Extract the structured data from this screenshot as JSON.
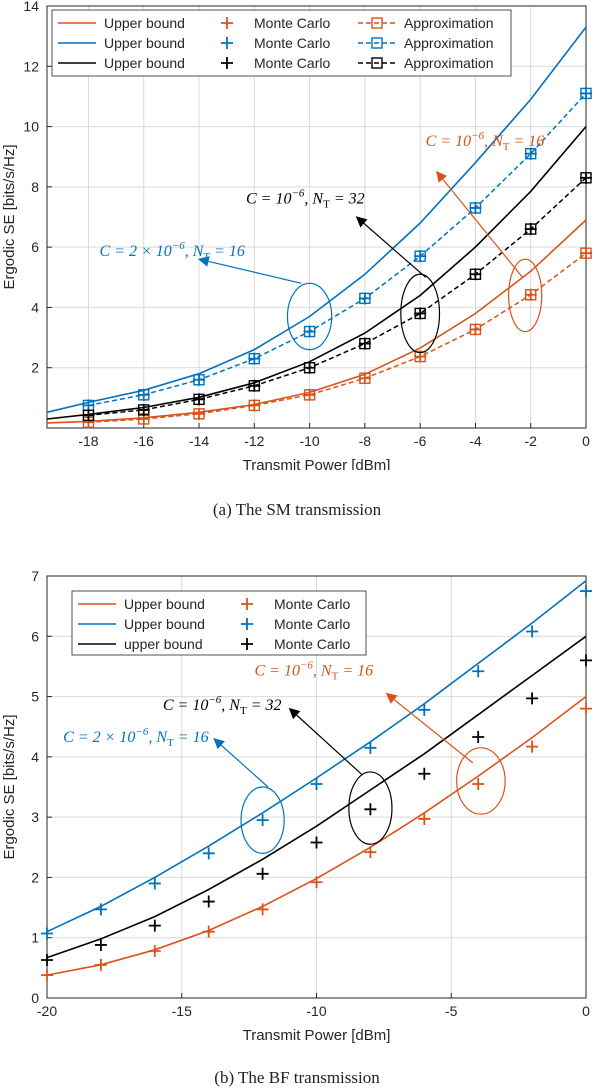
{
  "colors": {
    "orange": "#D95319",
    "blue": "#0072BD",
    "black": "#000000"
  },
  "captions": {
    "a": "(a)  The SM transmission",
    "b": "(b)  The BF transmission"
  },
  "chart_data": [
    {
      "type": "line",
      "xlabel": "Transmit Power [dBm]",
      "ylabel": "Ergodic SE [bits/s/Hz]",
      "xlim": [
        -19.5,
        0
      ],
      "ylim": [
        0,
        14
      ],
      "xticks": [
        -18,
        -16,
        -14,
        -12,
        -10,
        -8,
        -6,
        -4,
        -2,
        0
      ],
      "xticklabels": [
        "-18",
        "-16",
        "-14",
        "-12",
        "-10",
        "-8",
        "-6",
        "-4",
        "-2",
        "0"
      ],
      "yticks": [
        2,
        4,
        6,
        8,
        10,
        12,
        14
      ],
      "yticklabels": [
        "2",
        "4",
        "6",
        "8",
        "10",
        "12",
        "14"
      ],
      "grid": true,
      "legend_placement": "top",
      "legend": [
        [
          "Upper bound",
          "Monte Carlo",
          "Approximation"
        ],
        [
          "Upper bound",
          "Monte Carlo",
          "Approximation"
        ],
        [
          "Upper bound",
          "Monte Carlo",
          "Approximation"
        ]
      ],
      "series": [
        {
          "color": "orange",
          "upper_x": [
            -19.5,
            -18,
            -16,
            -14,
            -12,
            -10,
            -8,
            -6,
            -4,
            -2,
            0
          ],
          "upper_y": [
            0.17,
            0.22,
            0.34,
            0.52,
            0.78,
            1.18,
            1.78,
            2.65,
            3.8,
            5.2,
            6.9
          ],
          "mc_x": [
            -18,
            -16,
            -14,
            -12,
            -10,
            -8,
            -6,
            -4,
            -2,
            0
          ],
          "mc_y": [
            0.19,
            0.3,
            0.47,
            0.75,
            1.1,
            1.65,
            2.37,
            3.27,
            4.42,
            5.8
          ],
          "approx_y": [
            0.19,
            0.3,
            0.47,
            0.75,
            1.1,
            1.65,
            2.37,
            3.27,
            4.42,
            5.8
          ]
        },
        {
          "color": "blue",
          "upper_x": [
            -19.5,
            -18,
            -16,
            -14,
            -12,
            -10,
            -8,
            -6,
            -4,
            -2,
            0
          ],
          "upper_y": [
            0.52,
            0.85,
            1.25,
            1.8,
            2.6,
            3.7,
            5.1,
            6.8,
            8.8,
            10.9,
            13.3
          ],
          "mc_x": [
            -18,
            -16,
            -14,
            -12,
            -10,
            -8,
            -6,
            -4,
            -2,
            0
          ],
          "mc_y": [
            0.75,
            1.1,
            1.6,
            2.3,
            3.2,
            4.3,
            5.7,
            7.3,
            9.1,
            11.1
          ],
          "approx_y": [
            0.75,
            1.1,
            1.6,
            2.3,
            3.2,
            4.3,
            5.7,
            7.3,
            9.1,
            11.1
          ]
        },
        {
          "color": "black",
          "upper_x": [
            -19.5,
            -18,
            -16,
            -14,
            -12,
            -10,
            -8,
            -6,
            -4,
            -2,
            0
          ],
          "upper_y": [
            0.3,
            0.45,
            0.68,
            1.02,
            1.5,
            2.2,
            3.15,
            4.4,
            6.0,
            7.85,
            10.0
          ],
          "mc_x": [
            -18,
            -16,
            -14,
            -12,
            -10,
            -8,
            -6,
            -4,
            -2,
            0
          ],
          "mc_y": [
            0.42,
            0.6,
            0.95,
            1.4,
            2.0,
            2.8,
            3.8,
            5.1,
            6.6,
            8.3
          ],
          "approx_y": [
            0.42,
            0.6,
            0.95,
            1.4,
            2.0,
            2.8,
            3.8,
            5.1,
            6.6,
            8.3
          ]
        }
      ],
      "annotations": [
        {
          "color": "orange",
          "base": "C = 10",
          "sup": "−6",
          "mid": ", N",
          "sub": "T",
          "tail": " = 16",
          "tx": -5.8,
          "ty": 9.35,
          "ax1": -2.3,
          "ay1": 5.0,
          "ax2": -5.4,
          "ay2": 8.5,
          "ex": -2.2,
          "ey": 4.4,
          "erx": 0.6,
          "ery": 1.2
        },
        {
          "color": "black",
          "base": "C = 10",
          "sup": "−6",
          "mid": ", N",
          "sub": "T",
          "tail": " = 32",
          "tx": -12.3,
          "ty": 7.45,
          "ax1": -5.8,
          "ay1": 5.0,
          "ax2": -8.3,
          "ay2": 7.0,
          "ex": -6.0,
          "ey": 3.8,
          "erx": 0.7,
          "ery": 1.3
        },
        {
          "color": "blue",
          "base": "C = 2 × 10",
          "sup": "−6",
          "mid": ", N",
          "sub": "T",
          "tail": " = 16",
          "tx": -17.6,
          "ty": 5.7,
          "ax1": -10.3,
          "ay1": 4.8,
          "ax2": -14.0,
          "ay2": 5.6,
          "ex": -10.0,
          "ey": 3.7,
          "erx": 0.8,
          "ery": 1.1
        }
      ]
    },
    {
      "type": "line",
      "xlabel": "Transmit Power [dBm]",
      "ylabel": "Ergodic SE [bits/s/Hz]",
      "xlim": [
        -20,
        0
      ],
      "ylim": [
        0,
        7
      ],
      "xticks": [
        -20,
        -15,
        -10,
        -5,
        0
      ],
      "xticklabels": [
        "-20",
        "-15",
        "-10",
        "-5",
        "0"
      ],
      "yticks": [
        0,
        1,
        2,
        3,
        4,
        5,
        6,
        7
      ],
      "yticklabels": [
        "0",
        "1",
        "2",
        "3",
        "4",
        "5",
        "6",
        "7"
      ],
      "grid": true,
      "legend_placement": "top-left",
      "legend": [
        [
          "Upper bound",
          "Monte Carlo"
        ],
        [
          "Upper bound",
          "Monte Carlo"
        ],
        [
          "upper bound",
          "Monte Carlo"
        ]
      ],
      "series": [
        {
          "color": "orange",
          "upper_x": [
            -20,
            -18,
            -16,
            -14,
            -12,
            -10,
            -8,
            -6,
            -4,
            -2,
            0
          ],
          "upper_y": [
            0.38,
            0.55,
            0.8,
            1.12,
            1.52,
            1.98,
            2.5,
            3.07,
            3.68,
            4.32,
            5.0
          ],
          "mc_x": [
            -20,
            -18,
            -16,
            -14,
            -12,
            -10,
            -8,
            -6,
            -4,
            -2,
            0
          ],
          "mc_y": [
            0.38,
            0.55,
            0.78,
            1.1,
            1.47,
            1.92,
            2.42,
            2.97,
            3.55,
            4.17,
            4.8
          ]
        },
        {
          "color": "blue",
          "upper_x": [
            -20,
            -18,
            -16,
            -14,
            -12,
            -10,
            -8,
            -6,
            -4,
            -2,
            0
          ],
          "upper_y": [
            1.1,
            1.52,
            2.0,
            2.52,
            3.07,
            3.65,
            4.25,
            4.88,
            5.55,
            6.22,
            6.92
          ],
          "mc_x": [
            -20,
            -18,
            -16,
            -14,
            -12,
            -10,
            -8,
            -6,
            -4,
            -2,
            0
          ],
          "mc_y": [
            1.07,
            1.47,
            1.9,
            2.4,
            2.95,
            3.55,
            4.15,
            4.78,
            5.42,
            6.08,
            6.75
          ]
        },
        {
          "color": "black",
          "upper_x": [
            -20,
            -18,
            -16,
            -14,
            -12,
            -10,
            -8,
            -6,
            -4,
            -2,
            0
          ],
          "upper_y": [
            0.67,
            0.98,
            1.35,
            1.8,
            2.3,
            2.85,
            3.45,
            4.05,
            4.7,
            5.35,
            6.0
          ],
          "mc_x": [
            -20,
            -18,
            -16,
            -14,
            -12,
            -10,
            -8,
            -6,
            -4,
            -2,
            0
          ],
          "mc_y": [
            0.63,
            0.88,
            1.2,
            1.6,
            2.06,
            2.58,
            3.13,
            3.72,
            4.33,
            4.97,
            5.6
          ]
        }
      ],
      "annotations": [
        {
          "color": "orange",
          "base": "C = 10",
          "sup": "−6",
          "mid": ", N",
          "sub": "T",
          "tail": " = 16",
          "tx": -12.3,
          "ty": 5.35,
          "ax1": -4.2,
          "ay1": 3.9,
          "ax2": -7.4,
          "ay2": 5.05,
          "ex": -3.9,
          "ey": 3.6,
          "erx": 0.9,
          "ery": 0.55
        },
        {
          "color": "black",
          "base": "C = 10",
          "sup": "−6",
          "mid": ", N",
          "sub": "T",
          "tail": " = 32",
          "tx": -15.7,
          "ty": 4.78,
          "ax1": -8.3,
          "ay1": 3.7,
          "ax2": -11.0,
          "ay2": 4.8,
          "ex": -8.0,
          "ey": 3.15,
          "erx": 0.8,
          "ery": 0.6
        },
        {
          "color": "blue",
          "base": "C = 2 × 10",
          "sup": "−6",
          "mid": ", N",
          "sub": "T",
          "tail": " = 16",
          "tx": -19.4,
          "ty": 4.25,
          "ax1": -11.8,
          "ay1": 3.5,
          "ax2": -13.8,
          "ay2": 4.3,
          "ex": -12.0,
          "ey": 2.95,
          "erx": 0.8,
          "ery": 0.55
        }
      ]
    }
  ]
}
